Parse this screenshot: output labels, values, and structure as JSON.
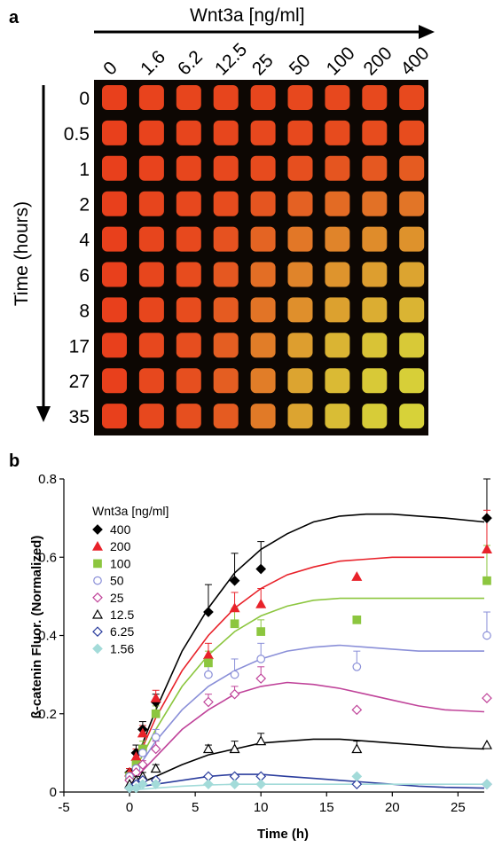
{
  "panel_a": {
    "label": "a",
    "x_title": "Wnt3a [ng/ml]",
    "y_title": "Time (hours)",
    "concentrations": [
      "0",
      "1.6",
      "6.2",
      "12.5",
      "25",
      "50",
      "100",
      "200",
      "400"
    ],
    "times": [
      "0",
      "0.5",
      "1",
      "2",
      "4",
      "6",
      "8",
      "17",
      "27",
      "35"
    ],
    "colors": {
      "background": "#0d0703",
      "low": "#e8401c",
      "high": "#d6d83a"
    },
    "green_level": [
      [
        0.0,
        0.02,
        0.03,
        0.03,
        0.04,
        0.05,
        0.05,
        0.06,
        0.06
      ],
      [
        0.0,
        0.02,
        0.03,
        0.04,
        0.05,
        0.06,
        0.07,
        0.08,
        0.08
      ],
      [
        0.0,
        0.02,
        0.04,
        0.05,
        0.07,
        0.1,
        0.14,
        0.16,
        0.18
      ],
      [
        0.0,
        0.03,
        0.05,
        0.08,
        0.14,
        0.22,
        0.28,
        0.32,
        0.35
      ],
      [
        0.0,
        0.03,
        0.06,
        0.12,
        0.24,
        0.36,
        0.45,
        0.5,
        0.54
      ],
      [
        0.0,
        0.04,
        0.08,
        0.16,
        0.3,
        0.45,
        0.55,
        0.62,
        0.66
      ],
      [
        0.0,
        0.04,
        0.08,
        0.18,
        0.34,
        0.52,
        0.64,
        0.72,
        0.76
      ],
      [
        0.0,
        0.05,
        0.09,
        0.2,
        0.4,
        0.62,
        0.76,
        0.86,
        0.9
      ],
      [
        0.0,
        0.05,
        0.1,
        0.2,
        0.4,
        0.66,
        0.8,
        0.9,
        0.94
      ],
      [
        0.0,
        0.05,
        0.1,
        0.18,
        0.38,
        0.66,
        0.82,
        0.92,
        0.96
      ]
    ]
  },
  "chart_data": {
    "type": "scatter",
    "panel_label": "b",
    "xlabel": "Time (h)",
    "ylabel": "ß-catenin Fluor. (Normalized)",
    "xlim": [
      -5,
      27
    ],
    "ylim": [
      0,
      0.8
    ],
    "xticks": [
      -5,
      0,
      5,
      10,
      15,
      20,
      25
    ],
    "yticks": [
      0,
      0.2,
      0.4,
      0.6,
      0.8
    ],
    "tick_labels_x": [
      "-5",
      "0",
      "5",
      "10",
      "15",
      "20",
      "25"
    ],
    "tick_labels_y": [
      "0",
      "0.2",
      "0.4",
      "0.6",
      "0.8"
    ],
    "grid": false,
    "legend_title": "Wnt3a [ng/ml]",
    "legend_position": "top-left",
    "series": [
      {
        "name": "400",
        "color": "#000000",
        "marker": "diamond",
        "filled": true,
        "x": [
          0,
          0.5,
          1,
          2,
          6,
          8,
          10,
          27.2
        ],
        "y": [
          0.05,
          0.1,
          0.16,
          0.23,
          0.46,
          0.54,
          0.57,
          0.7
        ],
        "err": [
          0.01,
          0.02,
          0.02,
          0.02,
          0.07,
          0.07,
          0.07,
          0.1
        ],
        "fit_x": [
          0,
          2,
          4,
          6,
          8,
          10,
          12,
          14,
          16,
          18,
          20,
          22,
          24,
          27
        ],
        "fit_y": [
          0.04,
          0.21,
          0.36,
          0.47,
          0.56,
          0.62,
          0.66,
          0.69,
          0.705,
          0.71,
          0.71,
          0.705,
          0.7,
          0.69
        ]
      },
      {
        "name": "200",
        "color": "#e8222a",
        "marker": "triangle",
        "filled": true,
        "x": [
          0,
          0.5,
          1,
          2,
          6,
          8,
          10,
          17.3,
          27.2
        ],
        "y": [
          0.05,
          0.09,
          0.15,
          0.24,
          0.35,
          0.47,
          0.48,
          0.55,
          0.62
        ],
        "err": [
          0.01,
          0.02,
          0.02,
          0.02,
          0.03,
          0.04,
          0.04,
          0.0,
          0.1
        ],
        "fit_x": [
          0,
          2,
          4,
          6,
          8,
          10,
          12,
          14,
          16,
          18,
          20,
          22,
          24,
          27
        ],
        "fit_y": [
          0.04,
          0.19,
          0.31,
          0.4,
          0.47,
          0.52,
          0.555,
          0.575,
          0.59,
          0.595,
          0.6,
          0.6,
          0.6,
          0.6
        ]
      },
      {
        "name": "100",
        "color": "#8cc63f",
        "marker": "square",
        "filled": true,
        "x": [
          0,
          0.5,
          1,
          2,
          6,
          8,
          10,
          17.3,
          27.2
        ],
        "y": [
          0.04,
          0.07,
          0.11,
          0.2,
          0.33,
          0.43,
          0.41,
          0.44,
          0.54
        ],
        "err": [
          0.01,
          0.01,
          0.02,
          0.02,
          0.03,
          0.04,
          0.03,
          0.0,
          0.09
        ],
        "fit_x": [
          0,
          2,
          4,
          6,
          8,
          10,
          12,
          14,
          16,
          18,
          20,
          22,
          24,
          27
        ],
        "fit_y": [
          0.03,
          0.16,
          0.27,
          0.35,
          0.41,
          0.45,
          0.475,
          0.49,
          0.495,
          0.495,
          0.495,
          0.495,
          0.495,
          0.495
        ]
      },
      {
        "name": "50",
        "color": "#8a8fd8",
        "marker": "circle",
        "filled": false,
        "x": [
          0,
          0.5,
          1,
          2,
          6,
          8,
          10,
          17.3,
          27.2
        ],
        "y": [
          0.04,
          0.06,
          0.1,
          0.14,
          0.3,
          0.3,
          0.34,
          0.32,
          0.4
        ],
        "err": [
          0.01,
          0.01,
          0.02,
          0.02,
          0.03,
          0.04,
          0.04,
          0.04,
          0.06
        ],
        "fit_x": [
          0,
          2,
          4,
          6,
          8,
          10,
          12,
          14,
          16,
          18,
          20,
          22,
          24,
          27
        ],
        "fit_y": [
          0.03,
          0.13,
          0.21,
          0.27,
          0.31,
          0.34,
          0.36,
          0.37,
          0.375,
          0.37,
          0.365,
          0.36,
          0.36,
          0.36
        ]
      },
      {
        "name": "25",
        "color": "#c0449a",
        "marker": "diamond",
        "filled": false,
        "x": [
          0,
          0.5,
          1,
          2,
          6,
          8,
          10,
          17.3,
          27.2
        ],
        "y": [
          0.03,
          0.05,
          0.07,
          0.11,
          0.23,
          0.25,
          0.29,
          0.21,
          0.24
        ],
        "err": [
          0.01,
          0.01,
          0.01,
          0.02,
          0.02,
          0.02,
          0.03,
          0.0,
          0.0
        ],
        "fit_x": [
          0,
          2,
          4,
          6,
          8,
          10,
          12,
          14,
          16,
          18,
          20,
          22,
          24,
          27
        ],
        "fit_y": [
          0.02,
          0.09,
          0.16,
          0.21,
          0.25,
          0.27,
          0.28,
          0.275,
          0.265,
          0.25,
          0.235,
          0.22,
          0.21,
          0.205
        ]
      },
      {
        "name": "12.5",
        "color": "#000000",
        "marker": "triangle",
        "filled": false,
        "x": [
          0,
          0.5,
          1,
          2,
          6,
          8,
          10,
          17.3,
          27.2
        ],
        "y": [
          0.02,
          0.03,
          0.04,
          0.06,
          0.11,
          0.11,
          0.13,
          0.11,
          0.12
        ],
        "err": [
          0.01,
          0.01,
          0.01,
          0.01,
          0.01,
          0.02,
          0.02,
          0.02,
          0.0
        ],
        "fit_x": [
          0,
          2,
          4,
          6,
          8,
          10,
          12,
          14,
          16,
          18,
          20,
          22,
          24,
          27
        ],
        "fit_y": [
          0.01,
          0.04,
          0.07,
          0.095,
          0.11,
          0.125,
          0.13,
          0.135,
          0.135,
          0.13,
          0.125,
          0.12,
          0.115,
          0.11
        ]
      },
      {
        "name": "6.25",
        "color": "#2c3e9e",
        "marker": "diamond",
        "filled": false,
        "x": [
          0,
          0.5,
          1,
          2,
          6,
          8,
          10,
          17.3,
          27.2
        ],
        "y": [
          0.01,
          0.02,
          0.03,
          0.03,
          0.04,
          0.04,
          0.04,
          0.02,
          0.02
        ],
        "err": [
          0.0,
          0.0,
          0.0,
          0.0,
          0.0,
          0.0,
          0.0,
          0.0,
          0.0
        ],
        "fit_x": [
          0,
          2,
          4,
          6,
          8,
          10,
          12,
          14,
          16,
          18,
          20,
          22,
          24,
          27
        ],
        "fit_y": [
          0.01,
          0.02,
          0.03,
          0.04,
          0.045,
          0.045,
          0.04,
          0.035,
          0.03,
          0.025,
          0.02,
          0.015,
          0.012,
          0.01
        ]
      },
      {
        "name": "1.56",
        "color": "#a3dbd9",
        "marker": "diamond",
        "filled": true,
        "x": [
          0,
          0.5,
          1,
          2,
          6,
          8,
          10,
          17.3,
          27.2
        ],
        "y": [
          0.01,
          0.01,
          0.02,
          0.02,
          0.02,
          0.02,
          0.02,
          0.04,
          0.02
        ],
        "err": [
          0.0,
          0.0,
          0.0,
          0.0,
          0.0,
          0.0,
          0.0,
          0.0,
          0.0
        ],
        "fit_x": [
          0,
          2,
          4,
          6,
          8,
          10,
          12,
          14,
          16,
          18,
          20,
          22,
          24,
          27
        ],
        "fit_y": [
          0.005,
          0.01,
          0.015,
          0.018,
          0.02,
          0.02,
          0.02,
          0.02,
          0.02,
          0.02,
          0.02,
          0.02,
          0.02,
          0.02
        ]
      }
    ]
  }
}
